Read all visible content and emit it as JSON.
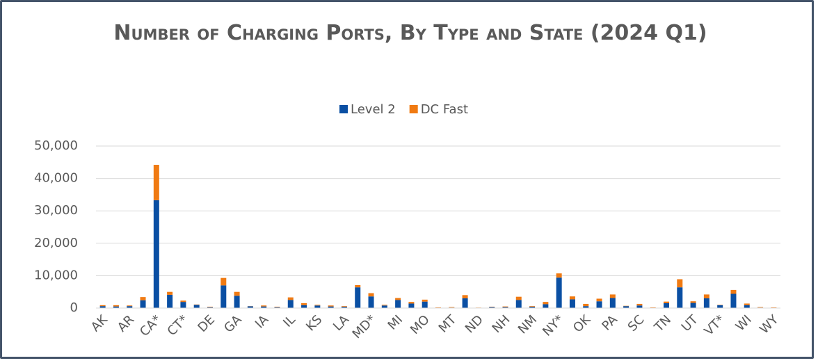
{
  "chart_data": {
    "type": "stacked_bar",
    "title": "Number of Charging Ports, By Type and State (2024 Q1)",
    "categories": [
      "AK",
      null,
      "AR",
      null,
      "CA*",
      null,
      "CT*",
      null,
      "DE",
      null,
      "GA",
      null,
      "IA",
      null,
      "IL",
      null,
      "KS",
      null,
      "LA",
      null,
      "MD*",
      null,
      "MI",
      null,
      "MO",
      null,
      "MT",
      null,
      "ND",
      null,
      "NH",
      null,
      "NM",
      null,
      "NY*",
      null,
      "OK",
      null,
      "PA",
      null,
      "SC",
      null,
      "TN",
      null,
      "UT",
      null,
      "VT*",
      null,
      "WI",
      null,
      "WY"
    ],
    "series": [
      {
        "name": "Level 2",
        "color": "#0a4fa3",
        "values": [
          600,
          500,
          600,
          2400,
          33300,
          4100,
          1900,
          1000,
          250,
          7000,
          3800,
          550,
          500,
          250,
          2500,
          900,
          800,
          500,
          400,
          6400,
          3600,
          800,
          2500,
          1400,
          2000,
          100,
          150,
          3000,
          80,
          300,
          300,
          2500,
          400,
          1200,
          9400,
          2700,
          600,
          2100,
          3100,
          600,
          800,
          100,
          1500,
          6400,
          1600,
          3000,
          900,
          4400,
          900,
          150,
          100
        ]
      },
      {
        "name": "DC Fast",
        "color": "#f07a12",
        "values": [
          300,
          400,
          200,
          1000,
          10900,
          900,
          400,
          100,
          150,
          2300,
          1200,
          50,
          300,
          150,
          800,
          600,
          200,
          300,
          200,
          700,
          1000,
          200,
          600,
          500,
          600,
          100,
          150,
          1000,
          70,
          100,
          200,
          1000,
          200,
          700,
          1300,
          900,
          700,
          800,
          1100,
          100,
          500,
          100,
          500,
          2500,
          500,
          1200,
          100,
          1200,
          500,
          150,
          100
        ]
      }
    ],
    "ylim": [
      0,
      50000
    ],
    "yticks": [
      0,
      {
        "value": 10000,
        "label": "10,000"
      },
      {
        "value": 20000,
        "label": "20,000"
      },
      {
        "value": 30000,
        "label": "30,000"
      },
      {
        "value": 40000,
        "label": "40,000"
      },
      {
        "value": 50000,
        "label": "50,000"
      }
    ],
    "grid": true,
    "legend": "top"
  }
}
